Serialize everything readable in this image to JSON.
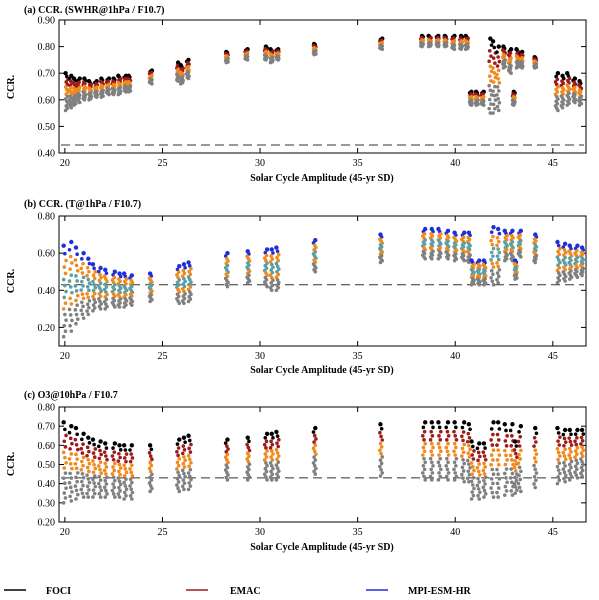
{
  "chart_data": [
    {
      "type": "scatter",
      "title": "(a) CCR. (SWHR@1hPa / F10.7)",
      "xlabel": "Solar Cycle Amplitude (45-yr SD)",
      "ylabel": "CCR.",
      "xlim": [
        19.7,
        46.7
      ],
      "ylim": [
        0.4,
        0.9
      ],
      "xticks": [
        "20",
        "25",
        "30",
        "35",
        "40",
        "45"
      ],
      "yticks": [
        "0.40",
        "0.50",
        "0.60",
        "0.70",
        "0.80",
        "0.90"
      ],
      "reference_line": 0.43,
      "clusters": [
        {
          "x": 20.1,
          "top": 0.7,
          "bottom": 0.56
        },
        {
          "x": 20.3,
          "top": 0.69,
          "bottom": 0.57
        },
        {
          "x": 20.5,
          "top": 0.68,
          "bottom": 0.58
        },
        {
          "x": 20.7,
          "top": 0.68,
          "bottom": 0.59
        },
        {
          "x": 21.0,
          "top": 0.68,
          "bottom": 0.6
        },
        {
          "x": 21.3,
          "top": 0.67,
          "bottom": 0.6
        },
        {
          "x": 21.6,
          "top": 0.67,
          "bottom": 0.61
        },
        {
          "x": 21.9,
          "top": 0.68,
          "bottom": 0.61
        },
        {
          "x": 22.2,
          "top": 0.68,
          "bottom": 0.62
        },
        {
          "x": 22.5,
          "top": 0.68,
          "bottom": 0.62
        },
        {
          "x": 22.8,
          "top": 0.69,
          "bottom": 0.62
        },
        {
          "x": 23.1,
          "top": 0.69,
          "bottom": 0.63
        },
        {
          "x": 23.3,
          "top": 0.69,
          "bottom": 0.63
        },
        {
          "x": 24.4,
          "top": 0.71,
          "bottom": 0.66
        },
        {
          "x": 25.8,
          "top": 0.74,
          "bottom": 0.67
        },
        {
          "x": 26.0,
          "top": 0.73,
          "bottom": 0.66
        },
        {
          "x": 26.3,
          "top": 0.75,
          "bottom": 0.68
        },
        {
          "x": 28.3,
          "top": 0.78,
          "bottom": 0.74
        },
        {
          "x": 29.3,
          "top": 0.79,
          "bottom": 0.75
        },
        {
          "x": 30.3,
          "top": 0.8,
          "bottom": 0.75
        },
        {
          "x": 30.6,
          "top": 0.79,
          "bottom": 0.74
        },
        {
          "x": 30.9,
          "top": 0.79,
          "bottom": 0.75
        },
        {
          "x": 32.8,
          "top": 0.81,
          "bottom": 0.77
        },
        {
          "x": 36.2,
          "top": 0.83,
          "bottom": 0.79
        },
        {
          "x": 38.3,
          "top": 0.84,
          "bottom": 0.8
        },
        {
          "x": 38.7,
          "top": 0.84,
          "bottom": 0.8
        },
        {
          "x": 39.1,
          "top": 0.84,
          "bottom": 0.8
        },
        {
          "x": 39.5,
          "top": 0.84,
          "bottom": 0.8
        },
        {
          "x": 39.9,
          "top": 0.84,
          "bottom": 0.79
        },
        {
          "x": 40.3,
          "top": 0.84,
          "bottom": 0.79
        },
        {
          "x": 40.6,
          "top": 0.84,
          "bottom": 0.79
        },
        {
          "x": 40.8,
          "top": 0.63,
          "bottom": 0.58
        },
        {
          "x": 41.1,
          "top": 0.63,
          "bottom": 0.58
        },
        {
          "x": 41.4,
          "top": 0.63,
          "bottom": 0.58
        },
        {
          "x": 41.8,
          "top": 0.83,
          "bottom": 0.55
        },
        {
          "x": 42.0,
          "top": 0.82,
          "bottom": 0.55
        },
        {
          "x": 42.2,
          "top": 0.8,
          "bottom": 0.56
        },
        {
          "x": 42.5,
          "top": 0.8,
          "bottom": 0.72
        },
        {
          "x": 42.8,
          "top": 0.79,
          "bottom": 0.7
        },
        {
          "x": 43.0,
          "top": 0.63,
          "bottom": 0.58
        },
        {
          "x": 43.2,
          "top": 0.79,
          "bottom": 0.72
        },
        {
          "x": 43.4,
          "top": 0.78,
          "bottom": 0.72
        },
        {
          "x": 44.1,
          "top": 0.76,
          "bottom": 0.72
        },
        {
          "x": 45.2,
          "top": 0.7,
          "bottom": 0.56
        },
        {
          "x": 45.5,
          "top": 0.69,
          "bottom": 0.57
        },
        {
          "x": 45.8,
          "top": 0.7,
          "bottom": 0.58
        },
        {
          "x": 46.1,
          "top": 0.68,
          "bottom": 0.59
        },
        {
          "x": 46.4,
          "top": 0.67,
          "bottom": 0.58
        }
      ]
    },
    {
      "type": "scatter",
      "title": "(b) CCR. (T@1hPa / F10.7)",
      "xlabel": "Solar Cycle Amplitude (45-yr SD)",
      "ylabel": "CCR.",
      "xlim": [
        19.7,
        46.7
      ],
      "ylim": [
        0.1,
        0.8
      ],
      "xticks": [
        "20",
        "25",
        "30",
        "35",
        "40",
        "45"
      ],
      "yticks": [
        "0.20",
        "0.40",
        "0.60",
        "0.80"
      ],
      "reference_line": 0.43,
      "clusters": [
        {
          "x": 20.0,
          "top": 0.64,
          "bottom": 0.15
        },
        {
          "x": 20.3,
          "top": 0.66,
          "bottom": 0.18
        },
        {
          "x": 20.6,
          "top": 0.63,
          "bottom": 0.22
        },
        {
          "x": 20.9,
          "top": 0.6,
          "bottom": 0.25
        },
        {
          "x": 21.2,
          "top": 0.57,
          "bottom": 0.27
        },
        {
          "x": 21.5,
          "top": 0.54,
          "bottom": 0.29
        },
        {
          "x": 21.8,
          "top": 0.52,
          "bottom": 0.3
        },
        {
          "x": 22.1,
          "top": 0.51,
          "bottom": 0.3
        },
        {
          "x": 22.5,
          "top": 0.5,
          "bottom": 0.31
        },
        {
          "x": 22.8,
          "top": 0.49,
          "bottom": 0.31
        },
        {
          "x": 23.1,
          "top": 0.49,
          "bottom": 0.31
        },
        {
          "x": 23.4,
          "top": 0.48,
          "bottom": 0.32
        },
        {
          "x": 24.4,
          "top": 0.49,
          "bottom": 0.34
        },
        {
          "x": 25.8,
          "top": 0.53,
          "bottom": 0.33
        },
        {
          "x": 26.1,
          "top": 0.54,
          "bottom": 0.33
        },
        {
          "x": 26.4,
          "top": 0.55,
          "bottom": 0.34
        },
        {
          "x": 28.3,
          "top": 0.6,
          "bottom": 0.42
        },
        {
          "x": 29.4,
          "top": 0.61,
          "bottom": 0.44
        },
        {
          "x": 30.3,
          "top": 0.62,
          "bottom": 0.42
        },
        {
          "x": 30.6,
          "top": 0.62,
          "bottom": 0.4
        },
        {
          "x": 30.9,
          "top": 0.63,
          "bottom": 0.4
        },
        {
          "x": 32.8,
          "top": 0.67,
          "bottom": 0.5
        },
        {
          "x": 36.2,
          "top": 0.7,
          "bottom": 0.55
        },
        {
          "x": 38.4,
          "top": 0.73,
          "bottom": 0.57
        },
        {
          "x": 38.8,
          "top": 0.73,
          "bottom": 0.57
        },
        {
          "x": 39.2,
          "top": 0.73,
          "bottom": 0.57
        },
        {
          "x": 39.6,
          "top": 0.72,
          "bottom": 0.57
        },
        {
          "x": 40.0,
          "top": 0.71,
          "bottom": 0.56
        },
        {
          "x": 40.4,
          "top": 0.71,
          "bottom": 0.56
        },
        {
          "x": 40.7,
          "top": 0.71,
          "bottom": 0.55
        },
        {
          "x": 40.9,
          "top": 0.56,
          "bottom": 0.43
        },
        {
          "x": 41.2,
          "top": 0.56,
          "bottom": 0.43
        },
        {
          "x": 41.5,
          "top": 0.56,
          "bottom": 0.43
        },
        {
          "x": 41.9,
          "top": 0.74,
          "bottom": 0.43
        },
        {
          "x": 42.2,
          "top": 0.73,
          "bottom": 0.44
        },
        {
          "x": 42.6,
          "top": 0.72,
          "bottom": 0.56
        },
        {
          "x": 42.9,
          "top": 0.72,
          "bottom": 0.56
        },
        {
          "x": 43.1,
          "top": 0.56,
          "bottom": 0.46
        },
        {
          "x": 43.3,
          "top": 0.72,
          "bottom": 0.58
        },
        {
          "x": 44.1,
          "top": 0.7,
          "bottom": 0.55
        },
        {
          "x": 45.3,
          "top": 0.66,
          "bottom": 0.44
        },
        {
          "x": 45.6,
          "top": 0.65,
          "bottom": 0.45
        },
        {
          "x": 45.9,
          "top": 0.64,
          "bottom": 0.46
        },
        {
          "x": 46.2,
          "top": 0.64,
          "bottom": 0.47
        },
        {
          "x": 46.5,
          "top": 0.63,
          "bottom": 0.48
        }
      ]
    },
    {
      "type": "scatter",
      "title": "(c) O3@10hPa / F10.7",
      "xlabel": "Solar Cycle Amplitude (45-yr SD)",
      "ylabel": "CCR.",
      "xlim": [
        19.7,
        46.7
      ],
      "ylim": [
        0.2,
        0.8
      ],
      "xticks": [
        "20",
        "25",
        "30",
        "35",
        "40",
        "45"
      ],
      "yticks": [
        "0.20",
        "0.30",
        "0.40",
        "0.50",
        "0.60",
        "0.70",
        "0.80"
      ],
      "reference_line": 0.43,
      "clusters": [
        {
          "x": 20.0,
          "top": 0.72,
          "bottom": 0.3
        },
        {
          "x": 20.3,
          "top": 0.7,
          "bottom": 0.31
        },
        {
          "x": 20.6,
          "top": 0.69,
          "bottom": 0.32
        },
        {
          "x": 20.9,
          "top": 0.66,
          "bottom": 0.33
        },
        {
          "x": 21.2,
          "top": 0.64,
          "bottom": 0.33
        },
        {
          "x": 21.5,
          "top": 0.63,
          "bottom": 0.33
        },
        {
          "x": 21.8,
          "top": 0.62,
          "bottom": 0.33
        },
        {
          "x": 22.1,
          "top": 0.61,
          "bottom": 0.33
        },
        {
          "x": 22.5,
          "top": 0.61,
          "bottom": 0.33
        },
        {
          "x": 22.8,
          "top": 0.6,
          "bottom": 0.33
        },
        {
          "x": 23.1,
          "top": 0.6,
          "bottom": 0.32
        },
        {
          "x": 23.4,
          "top": 0.6,
          "bottom": 0.32
        },
        {
          "x": 24.4,
          "top": 0.6,
          "bottom": 0.36
        },
        {
          "x": 25.8,
          "top": 0.63,
          "bottom": 0.36
        },
        {
          "x": 26.1,
          "top": 0.64,
          "bottom": 0.37
        },
        {
          "x": 26.4,
          "top": 0.65,
          "bottom": 0.37
        },
        {
          "x": 28.3,
          "top": 0.63,
          "bottom": 0.42
        },
        {
          "x": 29.4,
          "top": 0.64,
          "bottom": 0.42
        },
        {
          "x": 30.3,
          "top": 0.66,
          "bottom": 0.42
        },
        {
          "x": 30.6,
          "top": 0.66,
          "bottom": 0.42
        },
        {
          "x": 30.9,
          "top": 0.67,
          "bottom": 0.42
        },
        {
          "x": 32.8,
          "top": 0.69,
          "bottom": 0.45
        },
        {
          "x": 36.2,
          "top": 0.71,
          "bottom": 0.44
        },
        {
          "x": 38.4,
          "top": 0.72,
          "bottom": 0.42
        },
        {
          "x": 38.8,
          "top": 0.72,
          "bottom": 0.42
        },
        {
          "x": 39.2,
          "top": 0.72,
          "bottom": 0.42
        },
        {
          "x": 39.6,
          "top": 0.72,
          "bottom": 0.42
        },
        {
          "x": 40.0,
          "top": 0.72,
          "bottom": 0.42
        },
        {
          "x": 40.4,
          "top": 0.72,
          "bottom": 0.41
        },
        {
          "x": 40.7,
          "top": 0.71,
          "bottom": 0.41
        },
        {
          "x": 40.9,
          "top": 0.62,
          "bottom": 0.32
        },
        {
          "x": 41.2,
          "top": 0.61,
          "bottom": 0.32
        },
        {
          "x": 41.5,
          "top": 0.61,
          "bottom": 0.33
        },
        {
          "x": 41.9,
          "top": 0.72,
          "bottom": 0.33
        },
        {
          "x": 42.2,
          "top": 0.72,
          "bottom": 0.33
        },
        {
          "x": 42.6,
          "top": 0.71,
          "bottom": 0.34
        },
        {
          "x": 42.9,
          "top": 0.71,
          "bottom": 0.34
        },
        {
          "x": 43.1,
          "top": 0.62,
          "bottom": 0.35
        },
        {
          "x": 43.3,
          "top": 0.7,
          "bottom": 0.36
        },
        {
          "x": 44.1,
          "top": 0.69,
          "bottom": 0.38
        },
        {
          "x": 45.3,
          "top": 0.69,
          "bottom": 0.4
        },
        {
          "x": 45.6,
          "top": 0.68,
          "bottom": 0.41
        },
        {
          "x": 45.9,
          "top": 0.68,
          "bottom": 0.42
        },
        {
          "x": 46.2,
          "top": 0.68,
          "bottom": 0.43
        },
        {
          "x": 46.5,
          "top": 0.68,
          "bottom": 0.44
        }
      ]
    }
  ],
  "legend": {
    "placement": "bottom",
    "items": [
      {
        "label": "FOCI",
        "color": "#000000"
      },
      {
        "label": "EMAC",
        "color": "#9e1b1b"
      },
      {
        "label": "MPI-ESM-HR",
        "color": "#1f2fd8"
      }
    ]
  },
  "marker_colors": {
    "foci": "#000000",
    "emac": "#9e1b1b",
    "mpi": "#1f2fd8",
    "gray": "#808080",
    "orange": "#f08a1c",
    "teal": "#5f9ea0"
  }
}
